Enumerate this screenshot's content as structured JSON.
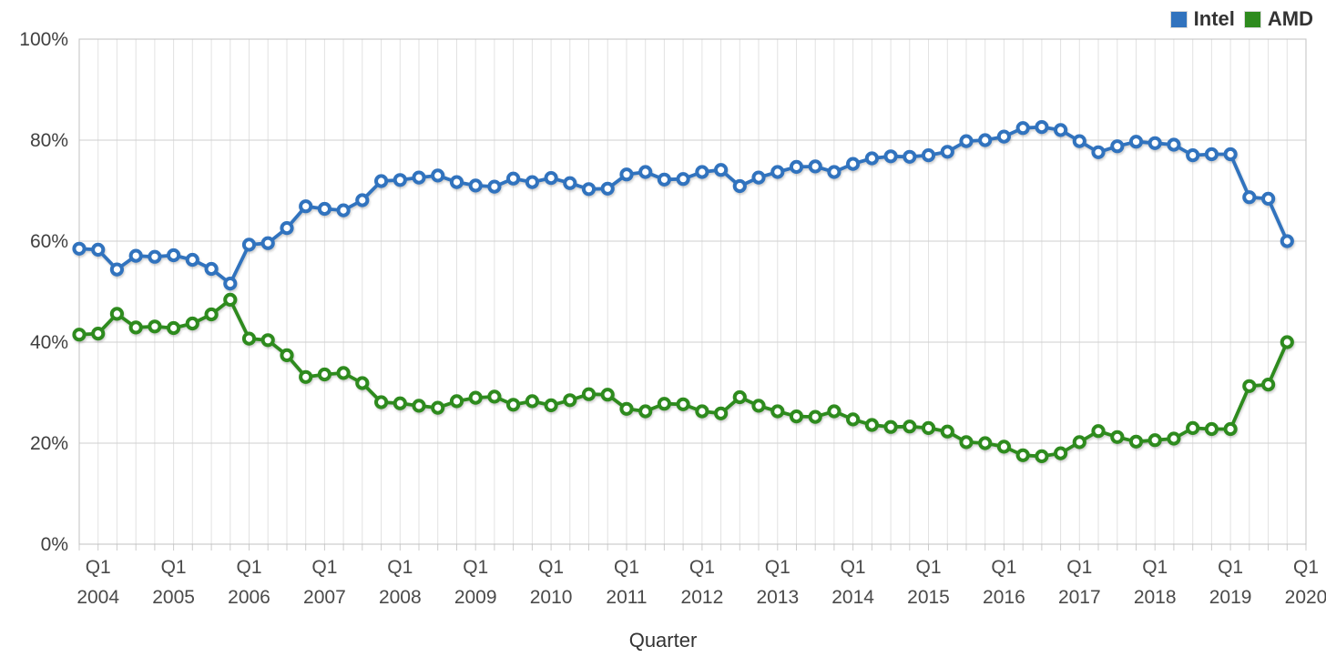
{
  "chart_data": {
    "type": "line",
    "xlabel": "Quarter",
    "ylabel": "",
    "ylim": [
      0,
      100
    ],
    "yticks": [
      {
        "value": 0,
        "label": "0%"
      },
      {
        "value": 20,
        "label": "20%"
      },
      {
        "value": 40,
        "label": "40%"
      },
      {
        "value": 60,
        "label": "60%"
      },
      {
        "value": 80,
        "label": "80%"
      },
      {
        "value": 100,
        "label": "100%"
      }
    ],
    "grid": true,
    "legend_position": "top-right",
    "x_tick_years": [
      "2004",
      "2005",
      "2006",
      "2007",
      "2008",
      "2009",
      "2010",
      "2011",
      "2012",
      "2013",
      "2014",
      "2015",
      "2016",
      "2017",
      "2018",
      "2019",
      "2020"
    ],
    "x_tick_quarter_label": "Q1",
    "categories": [
      "Q1 2004",
      "Q2 2004",
      "Q3 2004",
      "Q4 2004",
      "Q1 2005",
      "Q2 2005",
      "Q3 2005",
      "Q4 2005",
      "Q1 2006",
      "Q2 2006",
      "Q3 2006",
      "Q4 2006",
      "Q1 2007",
      "Q2 2007",
      "Q3 2007",
      "Q4 2007",
      "Q1 2008",
      "Q2 2008",
      "Q3 2008",
      "Q4 2008",
      "Q1 2009",
      "Q2 2009",
      "Q3 2009",
      "Q4 2009",
      "Q1 2010",
      "Q2 2010",
      "Q3 2010",
      "Q4 2010",
      "Q1 2011",
      "Q2 2011",
      "Q3 2011",
      "Q4 2011",
      "Q1 2012",
      "Q2 2012",
      "Q3 2012",
      "Q4 2012",
      "Q1 2013",
      "Q2 2013",
      "Q3 2013",
      "Q4 2013",
      "Q1 2014",
      "Q2 2014",
      "Q3 2014",
      "Q4 2014",
      "Q1 2015",
      "Q2 2015",
      "Q3 2015",
      "Q4 2015",
      "Q1 2016",
      "Q2 2016",
      "Q3 2016",
      "Q4 2016",
      "Q1 2017",
      "Q2 2017",
      "Q3 2017",
      "Q4 2017",
      "Q1 2018",
      "Q2 2018",
      "Q3 2018",
      "Q4 2018",
      "Q1 2019",
      "Q2 2019",
      "Q3 2019",
      "Q4 2019",
      "Q1 2020"
    ],
    "series": [
      {
        "name": "Intel",
        "color": "#3173be",
        "values": [
          58.5,
          58.3,
          54.4,
          57.1,
          56.9,
          57.2,
          56.3,
          54.5,
          51.6,
          59.3,
          59.6,
          62.6,
          66.9,
          66.4,
          66.1,
          68.1,
          71.9,
          72.1,
          72.6,
          73.0,
          71.7,
          71.0,
          70.8,
          72.4,
          71.7,
          72.5,
          71.5,
          70.3,
          70.4,
          73.2,
          73.7,
          72.2,
          72.3,
          73.7,
          74.1,
          70.9,
          72.6,
          73.7,
          74.7,
          74.8,
          73.7,
          75.3,
          76.4,
          76.8,
          76.7,
          77.0,
          77.7,
          79.8,
          80.0,
          80.7,
          82.4,
          82.6,
          82.0,
          79.8,
          77.6,
          78.8,
          79.7,
          79.4,
          79.1,
          77.0,
          77.2,
          77.2,
          68.7,
          68.4,
          60.0
        ]
      },
      {
        "name": "AMD",
        "color": "#2e8b1e",
        "values": [
          41.5,
          41.7,
          45.6,
          42.9,
          43.1,
          42.8,
          43.7,
          45.5,
          48.4,
          40.7,
          40.4,
          37.4,
          33.1,
          33.6,
          33.9,
          31.9,
          28.1,
          27.9,
          27.4,
          27.0,
          28.3,
          29.0,
          29.2,
          27.6,
          28.3,
          27.5,
          28.5,
          29.7,
          29.6,
          26.8,
          26.3,
          27.8,
          27.7,
          26.3,
          25.9,
          29.1,
          27.4,
          26.3,
          25.3,
          25.2,
          26.3,
          24.7,
          23.6,
          23.2,
          23.3,
          23.0,
          22.3,
          20.2,
          20.0,
          19.3,
          17.6,
          17.4,
          18.0,
          20.2,
          22.4,
          21.2,
          20.3,
          20.6,
          20.9,
          23.0,
          22.8,
          22.8,
          31.3,
          31.6,
          40.0
        ]
      }
    ]
  }
}
